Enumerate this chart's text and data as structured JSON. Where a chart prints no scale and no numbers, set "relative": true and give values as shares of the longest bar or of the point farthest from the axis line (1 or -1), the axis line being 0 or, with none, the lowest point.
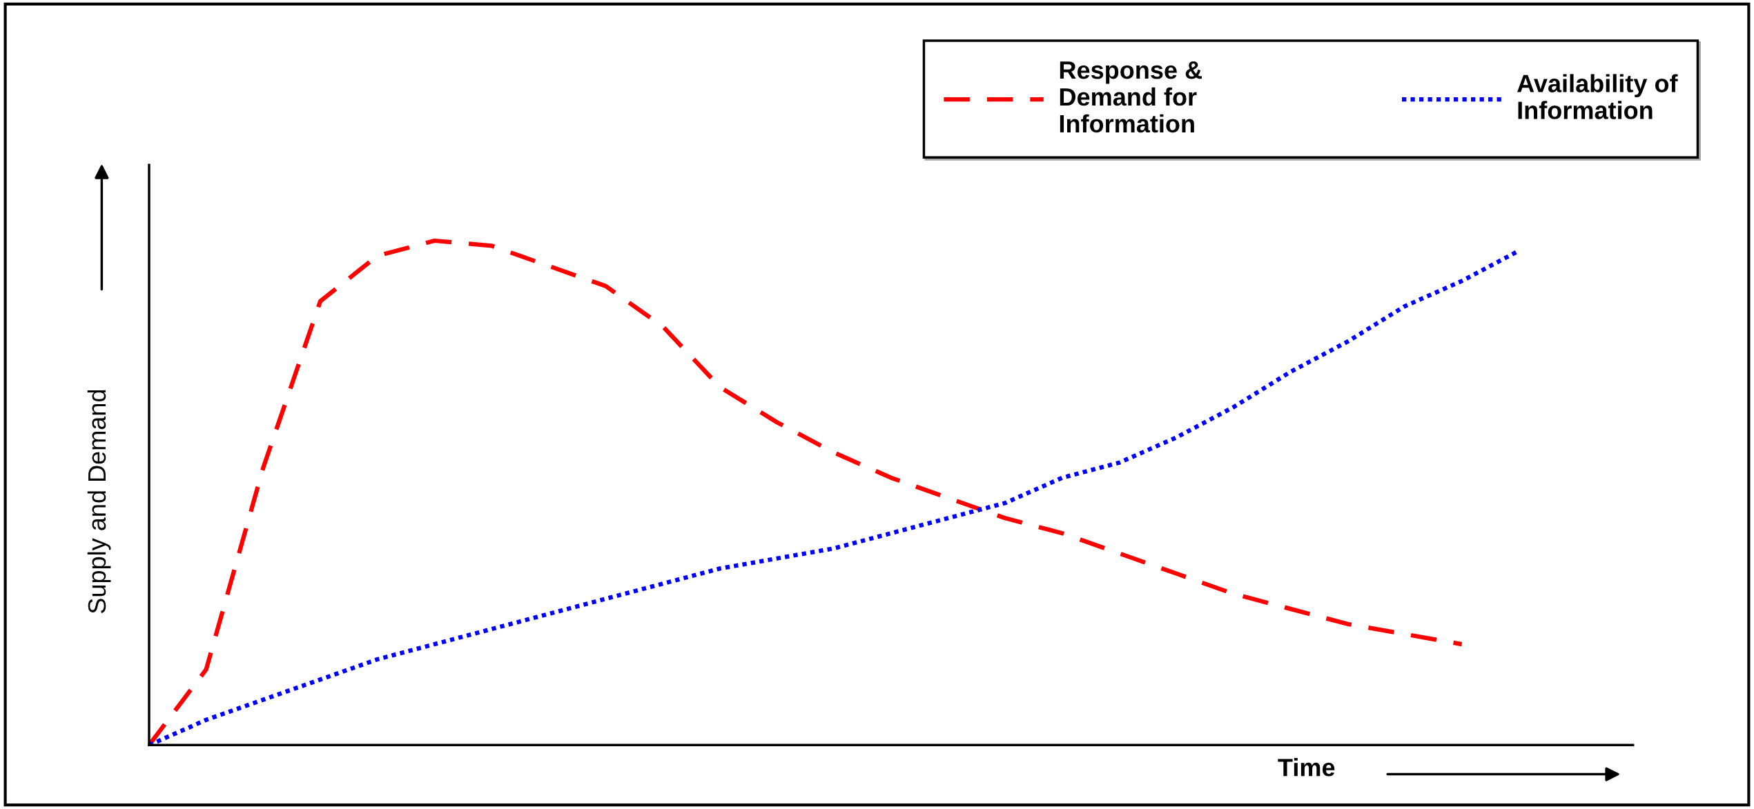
{
  "chart_data": {
    "type": "line",
    "relative": true,
    "xlabel": "Time",
    "ylabel": "Supply and Demand",
    "categories": [
      null,
      null,
      null,
      null,
      null,
      null,
      null,
      null,
      null,
      null,
      null,
      null,
      null,
      null,
      null,
      null,
      null,
      null,
      null,
      null,
      null,
      null,
      null,
      null,
      null
    ],
    "series": [
      {
        "name": "Response &\nDemand for\nInformation",
        "color": "#ff0000",
        "line_style": "dashed",
        "values": [
          0,
          0.15,
          0.55,
          0.88,
          0.97,
          1.0,
          0.99,
          0.95,
          0.91,
          0.83,
          0.71,
          0.64,
          0.58,
          0.53,
          0.49,
          0.45,
          0.42,
          0.38,
          0.34,
          0.3,
          0.27,
          0.24,
          0.22,
          0.2,
          null
        ]
      },
      {
        "name": "Availability of\nInformation",
        "color": "#0000ff",
        "line_style": "dotted",
        "values": [
          0,
          0.05,
          0.09,
          0.13,
          0.17,
          0.2,
          0.23,
          0.26,
          0.29,
          0.32,
          0.35,
          0.37,
          0.39,
          0.42,
          0.45,
          0.48,
          0.53,
          0.56,
          0.61,
          0.67,
          0.74,
          0.8,
          0.87,
          0.92,
          0.98
        ]
      }
    ],
    "grid": false,
    "legend": "top right",
    "marker": "none"
  }
}
